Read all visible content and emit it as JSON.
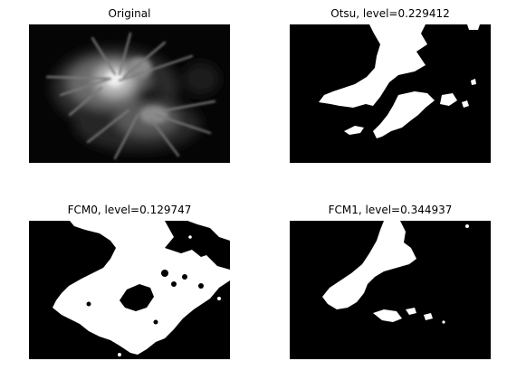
{
  "figure": {
    "panels": [
      {
        "title": "Original",
        "image": "grayscale fluorescence cell image"
      },
      {
        "title": "Otsu, level=0.229412",
        "image": "binary segmentation mask"
      },
      {
        "title": "FCM0, level=0.129747",
        "image": "binary segmentation mask"
      },
      {
        "title": "FCM1, level=0.344937",
        "image": "binary segmentation mask"
      }
    ]
  }
}
